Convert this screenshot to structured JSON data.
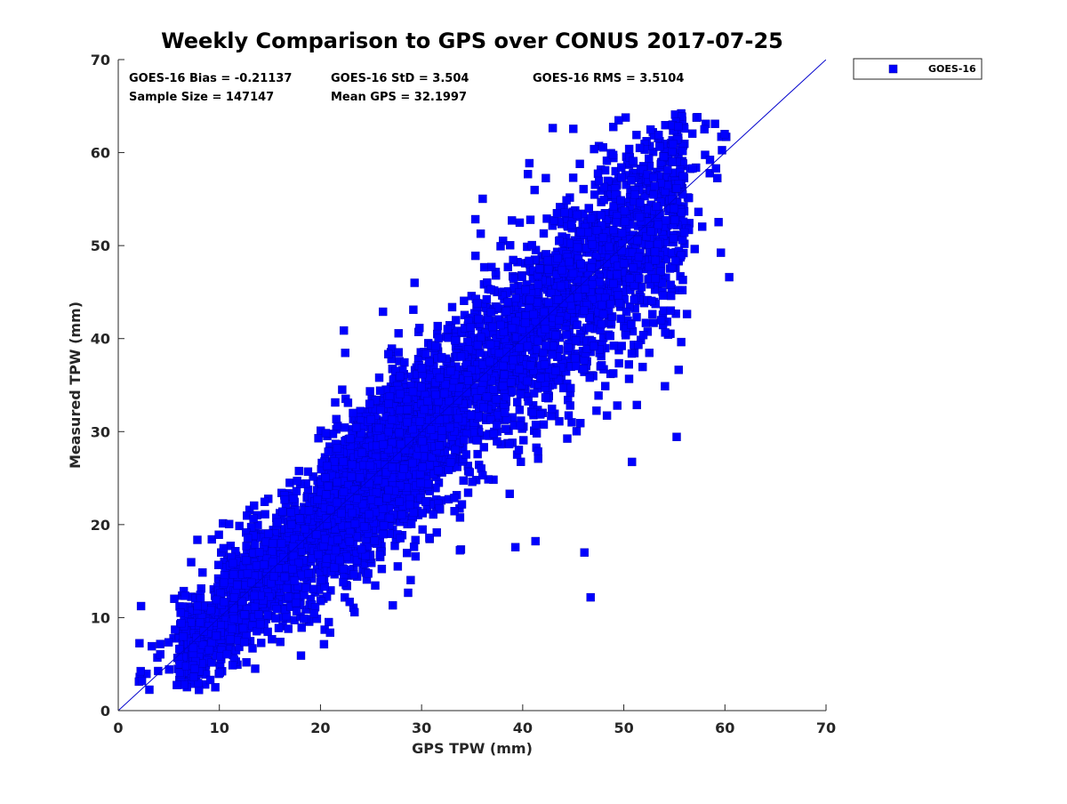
{
  "chart_data": {
    "type": "scatter",
    "title": "Weekly Comparison to GPS over CONUS 2017-07-25",
    "xlabel": "GPS TPW (mm)",
    "ylabel": "Measured TPW (mm)",
    "xlim": [
      0,
      70
    ],
    "ylim": [
      0,
      70
    ],
    "xticks": [
      "0",
      "10",
      "20",
      "30",
      "40",
      "50",
      "60",
      "70"
    ],
    "yticks": [
      "0",
      "10",
      "20",
      "30",
      "40",
      "50",
      "60",
      "70"
    ],
    "grid": false,
    "legend_position": "outside-top-right",
    "series": [
      {
        "name": "GOES-16",
        "color": "#0000FF",
        "marker": "square",
        "sample_size": 147147,
        "bias": -0.21137,
        "std": 3.504,
        "rms": 3.5104,
        "mean_gps": 32.1997
      }
    ],
    "reference_line": {
      "name": "1:1 line",
      "from": [
        0,
        0
      ],
      "to": [
        70,
        70
      ],
      "color": "#0000CC"
    },
    "annotations": [
      "GOES-16 Bias = -0.21137",
      "GOES-16 StD = 3.504",
      "GOES-16 RMS = 3.5104",
      "Sample Size = 147147",
      "Mean GPS = 32.1997"
    ],
    "legend_entries": [
      "GOES-16"
    ]
  }
}
